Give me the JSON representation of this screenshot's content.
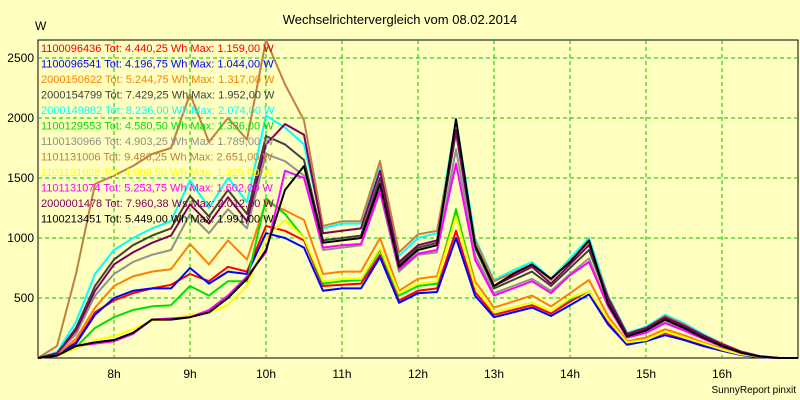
{
  "chart_data": {
    "type": "line",
    "title": "Wechselrichtervergleich vom 08.02.2014",
    "ylabel": "W",
    "xlabel": "",
    "credit": "SunnyReport pinxit",
    "grid": true,
    "legend_position": "top-left",
    "ylim": [
      0,
      2650
    ],
    "yticks": [
      500,
      1000,
      1500,
      2000,
      2500
    ],
    "xticks": [
      "8h",
      "9h",
      "10h",
      "11h",
      "12h",
      "13h",
      "14h",
      "15h",
      "16h"
    ],
    "x": [
      "07:00",
      "07:15",
      "07:30",
      "07:45",
      "08:00",
      "08:15",
      "08:30",
      "08:45",
      "09:00",
      "09:15",
      "09:30",
      "09:45",
      "10:00",
      "10:15",
      "10:30",
      "10:45",
      "11:00",
      "11:15",
      "11:30",
      "11:45",
      "12:00",
      "12:15",
      "12:30",
      "12:45",
      "13:00",
      "13:15",
      "13:30",
      "13:45",
      "14:00",
      "14:15",
      "14:30",
      "14:45",
      "15:00",
      "15:15",
      "15:30",
      "15:45",
      "16:00",
      "16:15",
      "16:30",
      "16:45",
      "17:00"
    ],
    "series": [
      {
        "name": "1100096436 Tot: 4.440,25 Wh Max: 1.159,00 W",
        "color": "#ff0000",
        "values": [
          0,
          30,
          130,
          380,
          480,
          540,
          580,
          610,
          700,
          640,
          760,
          720,
          1100,
          1060,
          980,
          600,
          610,
          620,
          860,
          480,
          560,
          580,
          1060,
          550,
          360,
          400,
          440,
          370,
          470,
          560,
          300,
          120,
          150,
          210,
          160,
          110,
          70,
          30,
          10,
          0,
          0
        ]
      },
      {
        "name": "1100096541 Tot: 4.196,75 Wh Max: 1.044,00 W",
        "color": "#0000ff",
        "values": [
          0,
          30,
          120,
          360,
          500,
          560,
          580,
          580,
          750,
          620,
          720,
          700,
          1040,
          1000,
          920,
          560,
          580,
          580,
          840,
          460,
          540,
          550,
          1000,
          520,
          340,
          380,
          420,
          350,
          440,
          530,
          280,
          110,
          140,
          190,
          150,
          100,
          60,
          25,
          5,
          0,
          0
        ]
      },
      {
        "name": "2000150622 Tot: 5.244,75 Wh Max: 1.317,00 W",
        "color": "#ff8000",
        "values": [
          0,
          30,
          160,
          420,
          600,
          680,
          720,
          740,
          950,
          780,
          980,
          820,
          1300,
          1230,
          1150,
          700,
          720,
          720,
          1000,
          560,
          660,
          680,
          1220,
          640,
          420,
          470,
          520,
          430,
          540,
          650,
          350,
          140,
          170,
          240,
          190,
          130,
          80,
          35,
          10,
          0,
          0
        ]
      },
      {
        "name": "2000154799 Tot: 7.429,25 Wh Max: 1.952,00 W",
        "color": "#404040",
        "values": [
          0,
          40,
          250,
          600,
          820,
          940,
          1020,
          1080,
          1350,
          1180,
          1400,
          1200,
          1850,
          1780,
          1650,
          980,
          1000,
          1020,
          1500,
          780,
          920,
          960,
          1880,
          920,
          580,
          650,
          720,
          600,
          750,
          900,
          480,
          190,
          240,
          330,
          260,
          180,
          110,
          50,
          15,
          0,
          0
        ]
      },
      {
        "name": "2000149882 Tot: 8.236,00 Wh Max: 2.074,00 W",
        "color": "#00ffff",
        "values": [
          0,
          50,
          300,
          700,
          900,
          1000,
          1080,
          1140,
          1480,
          1250,
          1500,
          1300,
          2020,
          1920,
          1780,
          1080,
          1120,
          1120,
          1600,
          850,
          1000,
          1040,
          1980,
          1000,
          650,
          730,
          800,
          660,
          830,
          1000,
          520,
          210,
          260,
          360,
          290,
          200,
          120,
          55,
          15,
          0,
          0
        ]
      },
      {
        "name": "1100129553 Tot: 4.580,50 Wh Max: 1.336,00 W",
        "color": "#00e000",
        "values": [
          0,
          20,
          90,
          250,
          340,
          400,
          430,
          440,
          600,
          520,
          640,
          640,
          1330,
          1200,
          1000,
          620,
          640,
          650,
          900,
          520,
          600,
          620,
          1240,
          600,
          380,
          420,
          460,
          390,
          490,
          560,
          320,
          130,
          150,
          220,
          170,
          120,
          70,
          30,
          10,
          0,
          0
        ]
      },
      {
        "name": "1100130966 Tot: 4.903,25 Wh Max: 1.789,00 W",
        "color": "#909090",
        "values": [
          0,
          40,
          200,
          520,
          700,
          800,
          860,
          900,
          1200,
          1040,
          1240,
          1080,
          1700,
          1640,
          1520,
          900,
          920,
          940,
          1380,
          720,
          860,
          880,
          1740,
          860,
          540,
          600,
          660,
          560,
          700,
          830,
          440,
          180,
          220,
          300,
          240,
          170,
          100,
          45,
          12,
          0,
          0
        ]
      },
      {
        "name": "1101131006 Tot: 9.486,25 Wh Max: 2.651,00 W",
        "color": "#c08040",
        "values": [
          0,
          100,
          700,
          1450,
          1520,
          1600,
          1700,
          1750,
          2200,
          1800,
          2000,
          1820,
          2651,
          2280,
          1980,
          1100,
          1140,
          1140,
          1640,
          880,
          1030,
          1060,
          1900,
          980,
          640,
          710,
          780,
          650,
          810,
          960,
          510,
          200,
          250,
          350,
          280,
          190,
          120,
          55,
          15,
          0,
          0
        ]
      },
      {
        "name": "1101131028 Tot: 4.969,50 Wh Max: 1.320,00 W",
        "color": "#ffff00",
        "values": [
          0,
          20,
          80,
          150,
          180,
          240,
          310,
          320,
          360,
          380,
          440,
          600,
          1000,
          1150,
          1000,
          640,
          660,
          660,
          920,
          540,
          620,
          640,
          1180,
          600,
          380,
          420,
          460,
          390,
          500,
          560,
          320,
          130,
          150,
          220,
          170,
          120,
          70,
          30,
          10,
          0,
          0
        ]
      },
      {
        "name": "1101131074 Tot: 5.253,75 Wh Max: 1.602,00 W",
        "color": "#ff00ff",
        "values": [
          0,
          20,
          100,
          120,
          140,
          200,
          320,
          330,
          340,
          400,
          520,
          680,
          880,
          1560,
          1500,
          920,
          940,
          950,
          1400,
          740,
          870,
          900,
          1620,
          820,
          520,
          580,
          640,
          540,
          690,
          800,
          430,
          170,
          210,
          290,
          230,
          160,
          95,
          42,
          12,
          0,
          0
        ]
      },
      {
        "name": "2000001478 Tot: 7.960,38 Ws Max: 2.012,00 W",
        "color": "#800060",
        "values": [
          0,
          40,
          230,
          560,
          780,
          880,
          960,
          1020,
          1280,
          1120,
          1340,
          1140,
          1780,
          1950,
          1860,
          1040,
          1060,
          1080,
          1560,
          800,
          940,
          980,
          1900,
          940,
          600,
          680,
          760,
          620,
          780,
          940,
          500,
          200,
          250,
          340,
          270,
          190,
          115,
          52,
          15,
          0,
          0
        ]
      },
      {
        "name": "1100213451 Tot: 5.449,00 Wh Max: 1.991,00 W",
        "color": "#000000",
        "values": [
          0,
          20,
          100,
          130,
          150,
          210,
          320,
          320,
          340,
          380,
          500,
          660,
          900,
          1400,
          1600,
          960,
          980,
          1000,
          1450,
          760,
          900,
          940,
          1991,
          940,
          600,
          700,
          780,
          660,
          800,
          980,
          450,
          180,
          230,
          320,
          250,
          170,
          100,
          45,
          12,
          0,
          0
        ]
      }
    ]
  }
}
